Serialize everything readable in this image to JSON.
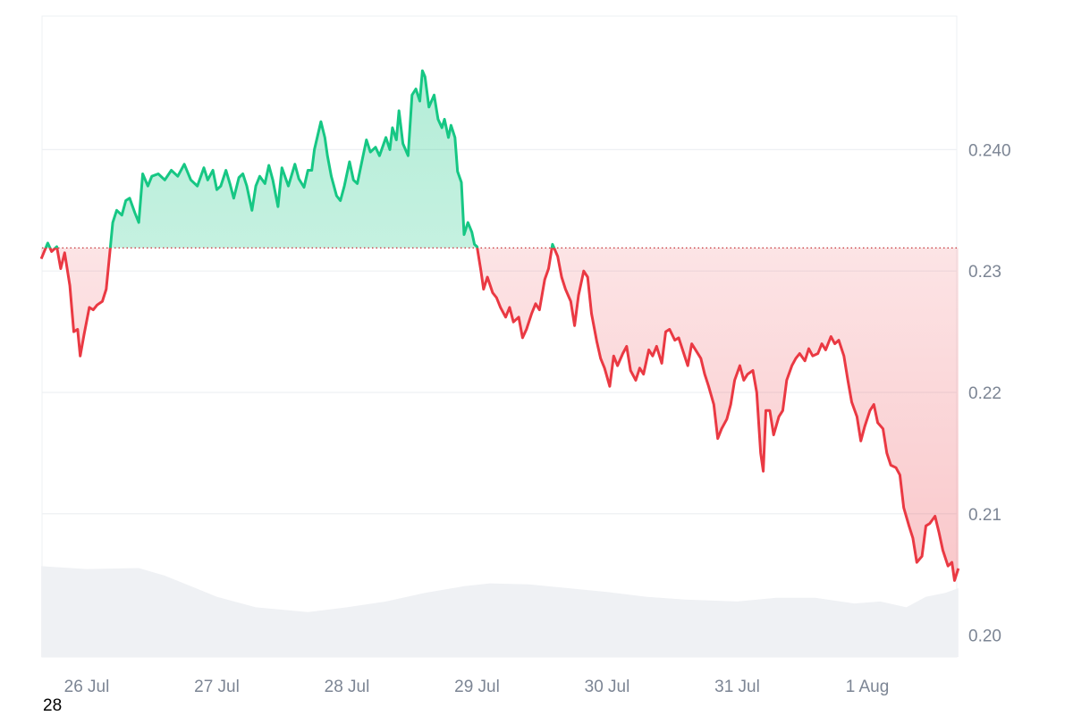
{
  "chart_data": {
    "type": "area",
    "baseline": 0.2319,
    "colors": {
      "up": "#16c784",
      "down": "#ea3943",
      "grid": "#eef0f3",
      "volume": "#eff1f4",
      "baseline": "#c8343b"
    },
    "y_ticks": [
      {
        "value": 0.2,
        "label": "0.20"
      },
      {
        "value": 0.21,
        "label": "0.21"
      },
      {
        "value": 0.22,
        "label": "0.22"
      },
      {
        "value": 0.23,
        "label": "0.23"
      },
      {
        "value": 0.24,
        "label": "0.240"
      }
    ],
    "x_ticks": [
      {
        "value": 0,
        "label": "26 Jul"
      },
      {
        "value": 1,
        "label": "27 Jul"
      },
      {
        "value": 2,
        "label": "28 Jul"
      },
      {
        "value": 3,
        "label": "29 Jul"
      },
      {
        "value": 4,
        "label": "30 Jul"
      },
      {
        "value": 5,
        "label": "31 Jul"
      },
      {
        "value": 6,
        "label": "1 Aug"
      }
    ],
    "ylim": [
      0.1982,
      0.251
    ],
    "xlim": [
      -0.35,
      6.7
    ],
    "series": [
      {
        "values": [
          [
            -0.35,
            0.231
          ],
          [
            -0.3,
            0.2323
          ],
          [
            -0.27,
            0.2316
          ],
          [
            -0.23,
            0.232
          ],
          [
            -0.2,
            0.2302
          ],
          [
            -0.17,
            0.2315
          ],
          [
            -0.13,
            0.2288
          ],
          [
            -0.1,
            0.225
          ],
          [
            -0.07,
            0.2252
          ],
          [
            -0.05,
            0.223
          ],
          [
            -0.02,
            0.2248
          ],
          [
            0.02,
            0.227
          ],
          [
            0.05,
            0.2268
          ],
          [
            0.08,
            0.2272
          ],
          [
            0.12,
            0.2275
          ],
          [
            0.15,
            0.2285
          ],
          [
            0.18,
            0.2318
          ],
          [
            0.2,
            0.234
          ],
          [
            0.23,
            0.235
          ],
          [
            0.27,
            0.2346
          ],
          [
            0.3,
            0.2358
          ],
          [
            0.33,
            0.236
          ],
          [
            0.37,
            0.2348
          ],
          [
            0.4,
            0.234
          ],
          [
            0.43,
            0.238
          ],
          [
            0.47,
            0.237
          ],
          [
            0.5,
            0.2378
          ],
          [
            0.55,
            0.238
          ],
          [
            0.6,
            0.2375
          ],
          [
            0.65,
            0.2383
          ],
          [
            0.7,
            0.2378
          ],
          [
            0.75,
            0.2388
          ],
          [
            0.8,
            0.2375
          ],
          [
            0.85,
            0.237
          ],
          [
            0.9,
            0.2385
          ],
          [
            0.93,
            0.2375
          ],
          [
            0.97,
            0.2383
          ],
          [
            1.0,
            0.2367
          ],
          [
            1.03,
            0.237
          ],
          [
            1.07,
            0.2383
          ],
          [
            1.1,
            0.2372
          ],
          [
            1.13,
            0.236
          ],
          [
            1.17,
            0.2377
          ],
          [
            1.2,
            0.238
          ],
          [
            1.23,
            0.237
          ],
          [
            1.27,
            0.235
          ],
          [
            1.3,
            0.237
          ],
          [
            1.33,
            0.2378
          ],
          [
            1.37,
            0.2372
          ],
          [
            1.4,
            0.2387
          ],
          [
            1.43,
            0.2375
          ],
          [
            1.47,
            0.2353
          ],
          [
            1.5,
            0.2385
          ],
          [
            1.55,
            0.237
          ],
          [
            1.6,
            0.2388
          ],
          [
            1.63,
            0.2376
          ],
          [
            1.67,
            0.2369
          ],
          [
            1.7,
            0.2383
          ],
          [
            1.73,
            0.2383
          ],
          [
            1.75,
            0.24
          ],
          [
            1.8,
            0.2423
          ],
          [
            1.83,
            0.241
          ],
          [
            1.85,
            0.2395
          ],
          [
            1.88,
            0.2378
          ],
          [
            1.92,
            0.2362
          ],
          [
            1.95,
            0.2358
          ],
          [
            1.98,
            0.237
          ],
          [
            2.02,
            0.239
          ],
          [
            2.05,
            0.2375
          ],
          [
            2.08,
            0.2372
          ],
          [
            2.12,
            0.2393
          ],
          [
            2.15,
            0.2408
          ],
          [
            2.18,
            0.2398
          ],
          [
            2.22,
            0.2402
          ],
          [
            2.25,
            0.2395
          ],
          [
            2.3,
            0.241
          ],
          [
            2.33,
            0.24
          ],
          [
            2.35,
            0.2418
          ],
          [
            2.38,
            0.2408
          ],
          [
            2.4,
            0.2432
          ],
          [
            2.43,
            0.2405
          ],
          [
            2.47,
            0.2395
          ],
          [
            2.5,
            0.2445
          ],
          [
            2.53,
            0.245
          ],
          [
            2.56,
            0.244
          ],
          [
            2.58,
            0.2465
          ],
          [
            2.6,
            0.246
          ],
          [
            2.63,
            0.2435
          ],
          [
            2.67,
            0.2445
          ],
          [
            2.7,
            0.2425
          ],
          [
            2.73,
            0.2418
          ],
          [
            2.75,
            0.2425
          ],
          [
            2.78,
            0.241
          ],
          [
            2.8,
            0.242
          ],
          [
            2.83,
            0.241
          ],
          [
            2.85,
            0.2382
          ],
          [
            2.88,
            0.2373
          ],
          [
            2.9,
            0.233
          ],
          [
            2.93,
            0.234
          ],
          [
            2.96,
            0.2332
          ],
          [
            2.98,
            0.2322
          ],
          [
            3.0,
            0.232
          ],
          [
            3.03,
            0.23
          ],
          [
            3.05,
            0.2285
          ],
          [
            3.08,
            0.2295
          ],
          [
            3.12,
            0.2282
          ],
          [
            3.15,
            0.2278
          ],
          [
            3.18,
            0.227
          ],
          [
            3.22,
            0.2262
          ],
          [
            3.25,
            0.227
          ],
          [
            3.28,
            0.2258
          ],
          [
            3.32,
            0.2262
          ],
          [
            3.35,
            0.2245
          ],
          [
            3.38,
            0.2252
          ],
          [
            3.42,
            0.2265
          ],
          [
            3.45,
            0.2273
          ],
          [
            3.48,
            0.2268
          ],
          [
            3.52,
            0.2293
          ],
          [
            3.55,
            0.2302
          ],
          [
            3.58,
            0.2322
          ],
          [
            3.62,
            0.2312
          ],
          [
            3.65,
            0.2295
          ],
          [
            3.68,
            0.2285
          ],
          [
            3.72,
            0.2275
          ],
          [
            3.75,
            0.2255
          ],
          [
            3.78,
            0.228
          ],
          [
            3.82,
            0.23
          ],
          [
            3.85,
            0.2295
          ],
          [
            3.88,
            0.2265
          ],
          [
            3.92,
            0.2242
          ],
          [
            3.95,
            0.2228
          ],
          [
            3.98,
            0.222
          ],
          [
            4.02,
            0.2205
          ],
          [
            4.05,
            0.223
          ],
          [
            4.08,
            0.2222
          ],
          [
            4.12,
            0.2232
          ],
          [
            4.15,
            0.2238
          ],
          [
            4.18,
            0.2218
          ],
          [
            4.22,
            0.221
          ],
          [
            4.25,
            0.222
          ],
          [
            4.28,
            0.2215
          ],
          [
            4.32,
            0.2235
          ],
          [
            4.35,
            0.223
          ],
          [
            4.38,
            0.2238
          ],
          [
            4.42,
            0.2224
          ],
          [
            4.45,
            0.225
          ],
          [
            4.48,
            0.2252
          ],
          [
            4.52,
            0.2243
          ],
          [
            4.55,
            0.2245
          ],
          [
            4.58,
            0.2235
          ],
          [
            4.62,
            0.2222
          ],
          [
            4.65,
            0.224
          ],
          [
            4.68,
            0.2235
          ],
          [
            4.72,
            0.2228
          ],
          [
            4.75,
            0.2215
          ],
          [
            4.78,
            0.2205
          ],
          [
            4.82,
            0.219
          ],
          [
            4.85,
            0.2162
          ],
          [
            4.88,
            0.217
          ],
          [
            4.92,
            0.2178
          ],
          [
            4.95,
            0.219
          ],
          [
            4.98,
            0.221
          ],
          [
            5.02,
            0.2222
          ],
          [
            5.05,
            0.221
          ],
          [
            5.08,
            0.2215
          ],
          [
            5.12,
            0.2218
          ],
          [
            5.15,
            0.22
          ],
          [
            5.18,
            0.215
          ],
          [
            5.2,
            0.2135
          ],
          [
            5.22,
            0.2185
          ],
          [
            5.25,
            0.2185
          ],
          [
            5.28,
            0.2165
          ],
          [
            5.32,
            0.218
          ],
          [
            5.35,
            0.2185
          ],
          [
            5.38,
            0.221
          ],
          [
            5.42,
            0.2222
          ],
          [
            5.45,
            0.2228
          ],
          [
            5.48,
            0.2232
          ],
          [
            5.52,
            0.2226
          ],
          [
            5.55,
            0.2236
          ],
          [
            5.58,
            0.223
          ],
          [
            5.62,
            0.2232
          ],
          [
            5.65,
            0.224
          ],
          [
            5.68,
            0.2235
          ],
          [
            5.72,
            0.2246
          ],
          [
            5.75,
            0.224
          ],
          [
            5.78,
            0.2243
          ],
          [
            5.82,
            0.223
          ],
          [
            5.85,
            0.221
          ],
          [
            5.88,
            0.2192
          ],
          [
            5.92,
            0.218
          ],
          [
            5.95,
            0.216
          ],
          [
            5.98,
            0.2172
          ],
          [
            6.02,
            0.2185
          ],
          [
            6.05,
            0.219
          ],
          [
            6.08,
            0.2175
          ],
          [
            6.12,
            0.217
          ],
          [
            6.15,
            0.215
          ],
          [
            6.18,
            0.214
          ],
          [
            6.22,
            0.2138
          ],
          [
            6.25,
            0.2132
          ],
          [
            6.28,
            0.2105
          ],
          [
            6.32,
            0.209
          ],
          [
            6.35,
            0.208
          ],
          [
            6.38,
            0.206
          ],
          [
            6.42,
            0.2065
          ],
          [
            6.45,
            0.209
          ],
          [
            6.48,
            0.2092
          ],
          [
            6.52,
            0.2098
          ],
          [
            6.55,
            0.2085
          ],
          [
            6.58,
            0.207
          ],
          [
            6.62,
            0.2057
          ],
          [
            6.65,
            0.206
          ],
          [
            6.67,
            0.2045
          ],
          [
            6.7,
            0.2055
          ]
        ]
      }
    ],
    "volume": [
      [
        -0.35,
        0.95
      ],
      [
        0.0,
        0.92
      ],
      [
        0.4,
        0.93
      ],
      [
        0.6,
        0.85
      ],
      [
        0.8,
        0.74
      ],
      [
        1.0,
        0.63
      ],
      [
        1.3,
        0.52
      ],
      [
        1.7,
        0.47
      ],
      [
        2.0,
        0.52
      ],
      [
        2.3,
        0.58
      ],
      [
        2.6,
        0.67
      ],
      [
        2.9,
        0.74
      ],
      [
        3.1,
        0.77
      ],
      [
        3.4,
        0.76
      ],
      [
        3.7,
        0.72
      ],
      [
        4.0,
        0.68
      ],
      [
        4.3,
        0.63
      ],
      [
        4.6,
        0.6
      ],
      [
        5.0,
        0.58
      ],
      [
        5.3,
        0.62
      ],
      [
        5.6,
        0.62
      ],
      [
        5.9,
        0.56
      ],
      [
        6.1,
        0.58
      ],
      [
        6.3,
        0.52
      ],
      [
        6.45,
        0.63
      ],
      [
        6.6,
        0.67
      ],
      [
        6.7,
        0.72
      ]
    ]
  },
  "corner_label": "28"
}
